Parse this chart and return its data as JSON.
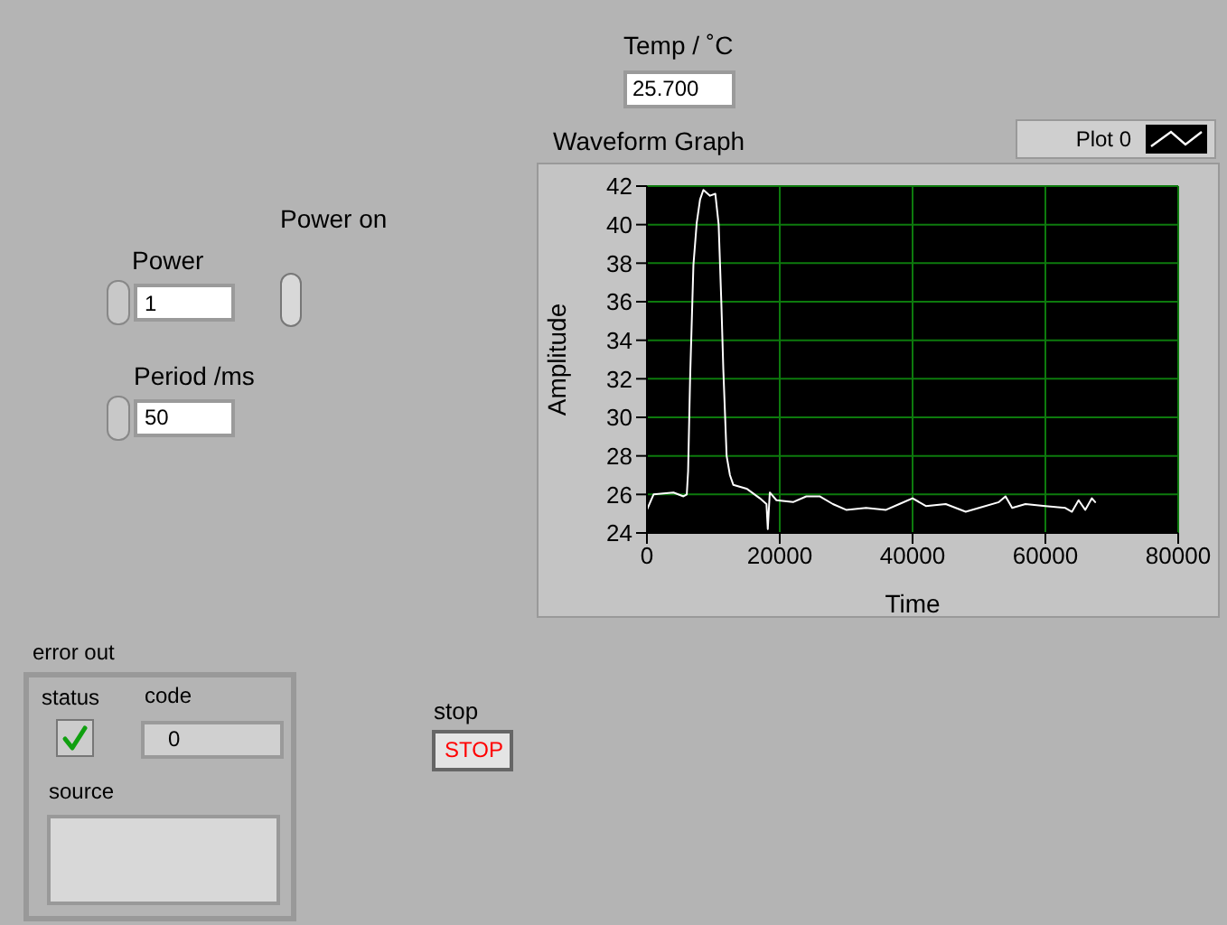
{
  "chart_data": {
    "type": "line",
    "title": "Waveform Graph",
    "xlabel": "Time",
    "ylabel": "Amplitude",
    "xlim": [
      0,
      80000
    ],
    "xticks": [
      0,
      20000,
      40000,
      60000,
      80000
    ],
    "ylim": [
      24,
      42
    ],
    "yticks": [
      24,
      26,
      28,
      30,
      32,
      34,
      36,
      38,
      40,
      42
    ],
    "grid": true,
    "legend": "top right",
    "x": [
      0,
      1000,
      4000,
      5500,
      6000,
      6200,
      6500,
      7000,
      7500,
      8000,
      8500,
      9500,
      10300,
      10800,
      11200,
      11500,
      12000,
      12500,
      13000,
      15000,
      17000,
      18000,
      18200,
      18500,
      19500,
      22000,
      24000,
      26000,
      28000,
      30000,
      33000,
      36000,
      38000,
      40000,
      42000,
      45000,
      48000,
      50000,
      53000,
      54000,
      55000,
      57000,
      60000,
      63000,
      64000,
      65000,
      66000,
      67000,
      67500
    ],
    "series": [
      {
        "name": "Plot 0",
        "color": "#ffffff",
        "values": [
          25.2,
          26.0,
          26.1,
          25.9,
          26.0,
          27.2,
          32,
          37.9,
          40.1,
          41.3,
          41.8,
          41.5,
          41.6,
          40,
          36,
          32.5,
          28,
          27,
          26.5,
          26.3,
          25.8,
          25.5,
          24.2,
          26.1,
          25.7,
          25.6,
          25.9,
          25.9,
          25.5,
          25.2,
          25.3,
          25.2,
          25.5,
          25.8,
          25.4,
          25.5,
          25.1,
          25.3,
          25.6,
          25.9,
          25.3,
          25.5,
          25.4,
          25.3,
          25.1,
          25.7,
          25.2,
          25.8,
          25.6
        ]
      }
    ],
    "annotations": [
      "Temp / ˚C",
      "25.700",
      "Power on",
      "Power",
      "1",
      "Period /ms",
      "50",
      "error out",
      "status",
      "code",
      "0",
      "source",
      "stop",
      "STOP"
    ]
  }
}
